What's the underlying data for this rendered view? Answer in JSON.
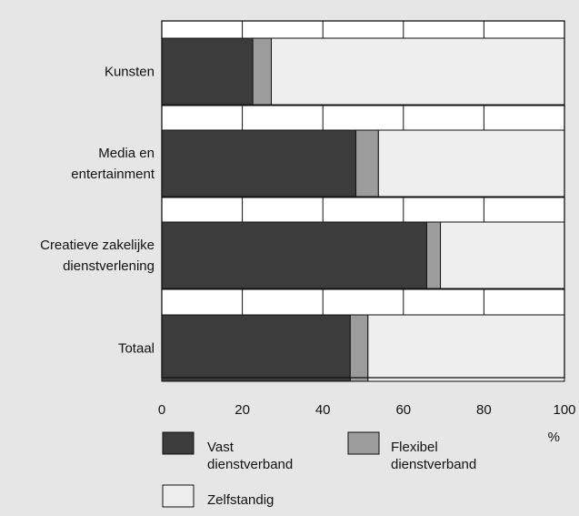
{
  "chart_data": {
    "type": "bar",
    "orientation": "horizontal",
    "stacked": true,
    "title": "",
    "xlabel": "%",
    "ylabel": "",
    "xlim": [
      0,
      100
    ],
    "x_ticks": [
      0,
      20,
      40,
      60,
      80,
      100
    ],
    "grid": true,
    "legend_position": "bottom",
    "categories": [
      [
        "Kunsten"
      ],
      [
        "Media en",
        "entertainment"
      ],
      [
        "Creatieve zakelijke",
        "dienstverlening"
      ],
      [
        "Totaal"
      ]
    ],
    "series": [
      {
        "name": [
          "Vast",
          "dienstverband"
        ],
        "color": "#3c3c3c",
        "values": [
          22.6,
          48.2,
          65.8,
          46.8
        ]
      },
      {
        "name": [
          "Flexibel",
          "dienstverband"
        ],
        "color": "#9c9c9c",
        "values": [
          4.6,
          5.6,
          3.4,
          4.4
        ]
      },
      {
        "name": [
          "Zelfstandig"
        ],
        "color": "#eeeeee",
        "values": [
          72.8,
          46.2,
          30.8,
          48.8
        ]
      }
    ],
    "colors": {
      "background": "#e6e6e6",
      "plot_background": "#ffffff",
      "border": "#111111"
    }
  }
}
